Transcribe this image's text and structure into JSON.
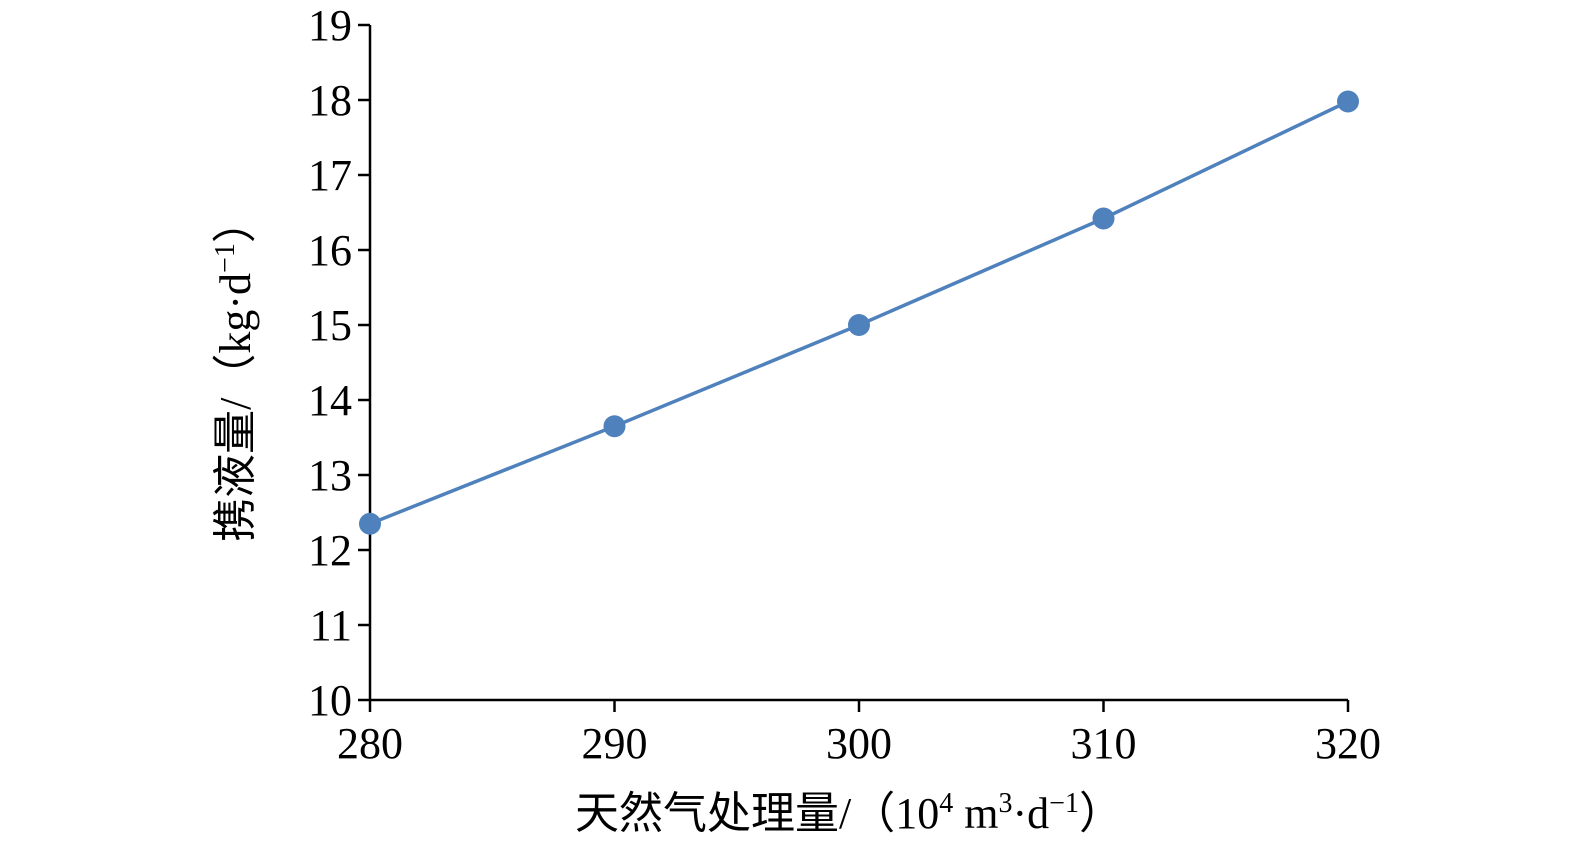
{
  "chart_data": {
    "type": "line",
    "title": "",
    "xlabel": {
      "main": "天然气处理量/（10",
      "sup1": "4",
      "mid": " m",
      "sup2": "3",
      "mid2": "·d",
      "sup3": "−1",
      "end": "）"
    },
    "ylabel": {
      "main": "携液量/（kg·d",
      "sup": "−1",
      "end": "）"
    },
    "x": [
      280,
      290,
      300,
      310,
      320
    ],
    "xlim": [
      280,
      320
    ],
    "xticks": [
      "280",
      "290",
      "300",
      "310",
      "320"
    ],
    "ylim": [
      10,
      19
    ],
    "yticks": [
      "10",
      "11",
      "12",
      "13",
      "14",
      "15",
      "16",
      "17",
      "18",
      "19"
    ],
    "grid": false,
    "legend": "none",
    "series": [
      {
        "values": [
          12.35,
          13.65,
          15.0,
          16.42,
          17.98
        ],
        "color": "#4f81bd"
      }
    ]
  }
}
